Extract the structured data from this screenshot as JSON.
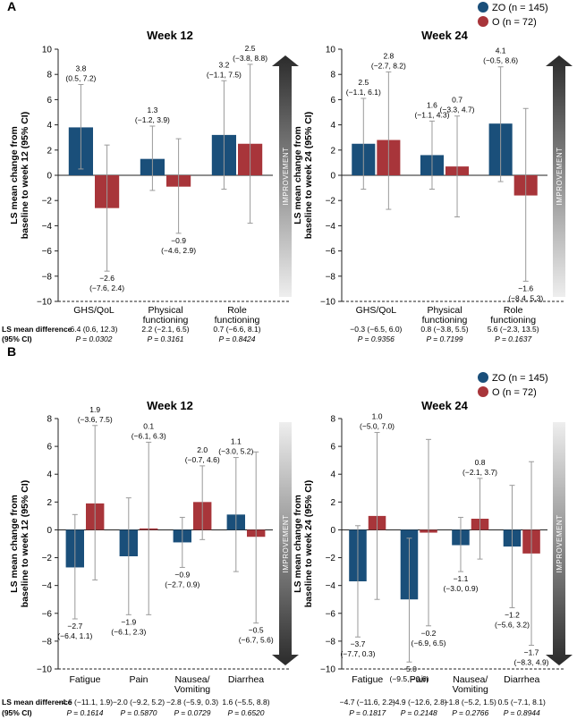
{
  "colors": {
    "zo": "#1a4f7a",
    "o": "#a8353a",
    "ci": "#9a9a9a",
    "axis": "#222222",
    "arrow_dark": "#2b2b2b",
    "arrow_light": "#eeeeee"
  },
  "common": {
    "improvement": "IMPROVEMENT",
    "diff_label_1": "LS mean difference",
    "diff_label_2": "(95% CI)"
  },
  "panels": [
    {
      "letter": "A",
      "legend": [
        {
          "label": "ZO (n = 145)",
          "color": "#1a4f7a"
        },
        {
          "label": "O (n = 72)",
          "color": "#a8353a"
        }
      ],
      "arrow_dir": "up",
      "charts": [
        {
          "title": "Week 12",
          "ylabel1": "LS mean change from",
          "ylabel2": "baseline to week 12 (95% CI)",
          "ylim": [
            -10,
            10
          ],
          "yticks": [
            -10,
            -8,
            -6,
            -4,
            -2,
            0,
            2,
            4,
            6,
            8,
            10
          ],
          "categories": [
            {
              "label": [
                "GHS/QoL"
              ],
              "zo": {
                "value": 3.8,
                "lo": 0.5,
                "hi": 7.2,
                "text1": "3.8",
                "text2": "(0.5, 7.2)"
              },
              "o": {
                "value": -2.6,
                "lo": -7.6,
                "hi": 2.4,
                "text1": "−2.6",
                "text2": "(−7.6, 2.4)"
              },
              "diff": "6.4 (0.6, 12.3)",
              "p": "P = 0.0302"
            },
            {
              "label": [
                "Physical",
                "functioning"
              ],
              "zo": {
                "value": 1.3,
                "lo": -1.2,
                "hi": 3.9,
                "text1": "1.3",
                "text2": "(−1.2, 3.9)"
              },
              "o": {
                "value": -0.9,
                "lo": -4.6,
                "hi": 2.9,
                "text1": "−0.9",
                "text2": "(−4.6, 2.9)"
              },
              "diff": "2.2 (−2.1, 6.5)",
              "p": "P = 0.3161"
            },
            {
              "label": [
                "Role",
                "functioning"
              ],
              "zo": {
                "value": 3.2,
                "lo": -1.1,
                "hi": 7.5,
                "text1": "3.2",
                "text2": "(−1.1, 7.5)"
              },
              "o": {
                "value": 2.5,
                "lo": -3.8,
                "hi": 8.8,
                "text1": "2.5",
                "text2": "(−3.8, 8.8)"
              },
              "diff": "0.7 (−6.6, 8.1)",
              "p": "P = 0.8424"
            }
          ]
        },
        {
          "title": "Week 24",
          "ylabel1": "LS mean change from",
          "ylabel2": "baseline to week 24 (95% CI)",
          "ylim": [
            -10,
            10
          ],
          "yticks": [
            -10,
            -8,
            -6,
            -4,
            -2,
            0,
            2,
            4,
            6,
            8,
            10
          ],
          "categories": [
            {
              "label": [
                "GHS/QoL"
              ],
              "zo": {
                "value": 2.5,
                "lo": -1.1,
                "hi": 6.1,
                "text1": "2.5",
                "text2": "(−1.1, 6.1)"
              },
              "o": {
                "value": 2.8,
                "lo": -2.7,
                "hi": 8.2,
                "text1": "2.8",
                "text2": "(−2.7, 8.2)"
              },
              "diff": "−0.3 (−6.5, 6.0)",
              "p": "P = 0.9356"
            },
            {
              "label": [
                "Physical",
                "functioning"
              ],
              "zo": {
                "value": 1.6,
                "lo": -1.1,
                "hi": 4.3,
                "text1": "1.6",
                "text2": "(−1.1, 4.3)"
              },
              "o": {
                "value": 0.7,
                "lo": -3.3,
                "hi": 4.7,
                "text1": "0.7",
                "text2": "(−3.3, 4.7)"
              },
              "diff": "0.8 (−3.8, 5.5)",
              "p": "P = 0.7199"
            },
            {
              "label": [
                "Role",
                "functioning"
              ],
              "zo": {
                "value": 4.1,
                "lo": -0.5,
                "hi": 8.6,
                "text1": "4.1",
                "text2": "(−0.5, 8.6)"
              },
              "o": {
                "value": -1.6,
                "lo": -8.4,
                "hi": 5.3,
                "text1": "−1.6",
                "text2": "(−8.4, 5.3)"
              },
              "diff": "5.6 (−2.3, 13.5)",
              "p": "P = 0.1637"
            }
          ]
        }
      ]
    },
    {
      "letter": "B",
      "legend": [
        {
          "label": "ZO (n = 145)",
          "color": "#1a4f7a"
        },
        {
          "label": "O (n = 72)",
          "color": "#a8353a"
        }
      ],
      "arrow_dir": "down",
      "charts": [
        {
          "title": "Week 12",
          "ylabel1": "LS mean change from",
          "ylabel2": "baseline to week 12 (95% CI)",
          "ylim": [
            -10,
            8
          ],
          "yticks": [
            -10,
            -8,
            -6,
            -4,
            -2,
            0,
            2,
            4,
            6,
            8
          ],
          "categories": [
            {
              "label": [
                "Fatigue"
              ],
              "zo": {
                "value": -2.7,
                "lo": -6.4,
                "hi": 1.1,
                "text1": "−2.7",
                "text2": "(−6.4, 1.1)"
              },
              "o": {
                "value": 1.9,
                "lo": -3.6,
                "hi": 7.5,
                "text1": "1.9",
                "text2": "(−3.6, 7.5)"
              },
              "diff": "−4.6 (−11.1, 1.9)",
              "p": "P = 0.1614"
            },
            {
              "label": [
                "Pain"
              ],
              "zo": {
                "value": -1.9,
                "lo": -6.1,
                "hi": 2.3,
                "text1": "−1.9",
                "text2": "(−6.1, 2.3)"
              },
              "o": {
                "value": 0.1,
                "lo": -6.1,
                "hi": 6.3,
                "text1": "0.1",
                "text2": "(−6.1, 6.3)"
              },
              "diff": "−2.0 (−9.2, 5.2)",
              "p": "P = 0.5870"
            },
            {
              "label": [
                "Nausea/",
                "Vomiting"
              ],
              "zo": {
                "value": -0.9,
                "lo": -2.7,
                "hi": 0.9,
                "text1": "−0.9",
                "text2": "(−2.7, 0.9)"
              },
              "o": {
                "value": 2.0,
                "lo": -0.7,
                "hi": 4.6,
                "text1": "2.0",
                "text2": "(−0.7, 4.6)"
              },
              "diff": "−2.8 (−5.9, 0.3)",
              "p": "P = 0.0729"
            },
            {
              "label": [
                "Diarrhea"
              ],
              "zo": {
                "value": 1.1,
                "lo": -3.0,
                "hi": 5.2,
                "text1": "1.1",
                "text2": "(−3.0, 5.2)"
              },
              "o": {
                "value": -0.5,
                "lo": -6.7,
                "hi": 5.6,
                "text1": "−0.5",
                "text2": "(−6.7, 5.6)"
              },
              "diff": "1.6 (−5.5, 8.8)",
              "p": "P = 0.6520"
            }
          ]
        },
        {
          "title": "Week 24",
          "ylabel1": "LS mean change from",
          "ylabel2": "baseline to week 24 (95% CI)",
          "ylim": [
            -10,
            8
          ],
          "yticks": [
            -10,
            -8,
            -6,
            -4,
            -2,
            0,
            2,
            4,
            6,
            8
          ],
          "categories": [
            {
              "label": [
                "Fatigue"
              ],
              "zo": {
                "value": -3.7,
                "lo": -7.7,
                "hi": 0.3,
                "text1": "−3.7",
                "text2": "(−7.7, 0.3)"
              },
              "o": {
                "value": 1.0,
                "lo": -5.0,
                "hi": 7.0,
                "text1": "1.0",
                "text2": "(−5.0, 7.0)"
              },
              "diff": "−4.7 (−11.6, 2.2)",
              "p": "P = 0.1817"
            },
            {
              "label": [
                "Pain"
              ],
              "zo": {
                "value": -5.0,
                "lo": -9.5,
                "hi": -0.6,
                "text1": "−5.0",
                "text2": "(−9.5, −0.6)"
              },
              "o": {
                "value": -0.2,
                "lo": -6.9,
                "hi": 6.5,
                "text1": "−0.2",
                "text2": "(−6.9, 6.5)"
              },
              "diff": "−4.9 (−12.6, 2.8)",
              "p": "P = 0.2148"
            },
            {
              "label": [
                "Nausea/",
                "Vomiting"
              ],
              "zo": {
                "value": -1.1,
                "lo": -3.0,
                "hi": 0.9,
                "text1": "−1.1",
                "text2": "(−3.0, 0.9)"
              },
              "o": {
                "value": 0.8,
                "lo": -2.1,
                "hi": 3.7,
                "text1": "0.8",
                "text2": "(−2.1, 3.7)"
              },
              "diff": "−1.8 (−5.2, 1.5)",
              "p": "P = 0.2766"
            },
            {
              "label": [
                "Diarrhea"
              ],
              "zo": {
                "value": -1.2,
                "lo": -5.6,
                "hi": 3.2,
                "text1": "−1.2",
                "text2": "(−5.6, 3.2)"
              },
              "o": {
                "value": -1.7,
                "lo": -8.3,
                "hi": 4.9,
                "text1": "−1.7",
                "text2": "(−8.3, 4.9)"
              },
              "diff": "0.5 (−7.1, 8.1)",
              "p": "P = 0.8944"
            }
          ]
        }
      ]
    }
  ],
  "chart_data": [
    {
      "type": "bar",
      "title": "Week 12",
      "panel": "A",
      "ylabel": "LS mean change from baseline to week 12 (95% CI)",
      "categories": [
        "GHS/QoL",
        "Physical functioning",
        "Role functioning"
      ],
      "ylim": [
        -10,
        10
      ],
      "series": [
        {
          "name": "ZO (n = 145)",
          "values": [
            3.8,
            1.3,
            3.2
          ],
          "ci_low": [
            0.5,
            -1.2,
            -1.1
          ],
          "ci_high": [
            7.2,
            3.9,
            7.5
          ]
        },
        {
          "name": "O (n = 72)",
          "values": [
            -2.6,
            -0.9,
            2.5
          ],
          "ci_low": [
            -7.6,
            -4.6,
            -3.8
          ],
          "ci_high": [
            2.4,
            2.9,
            8.8
          ]
        }
      ]
    },
    {
      "type": "bar",
      "title": "Week 24",
      "panel": "A",
      "ylabel": "LS mean change from baseline to week 24 (95% CI)",
      "categories": [
        "GHS/QoL",
        "Physical functioning",
        "Role functioning"
      ],
      "ylim": [
        -10,
        10
      ],
      "series": [
        {
          "name": "ZO (n = 145)",
          "values": [
            2.5,
            1.6,
            4.1
          ],
          "ci_low": [
            -1.1,
            -1.1,
            -0.5
          ],
          "ci_high": [
            6.1,
            4.3,
            8.6
          ]
        },
        {
          "name": "O (n = 72)",
          "values": [
            2.8,
            0.7,
            -1.6
          ],
          "ci_low": [
            -2.7,
            -3.3,
            -8.4
          ],
          "ci_high": [
            8.2,
            4.7,
            5.3
          ]
        }
      ]
    },
    {
      "type": "bar",
      "title": "Week 12",
      "panel": "B",
      "ylabel": "LS mean change from baseline to week 12 (95% CI)",
      "categories": [
        "Fatigue",
        "Pain",
        "Nausea/Vomiting",
        "Diarrhea"
      ],
      "ylim": [
        -10,
        8
      ],
      "series": [
        {
          "name": "ZO (n = 145)",
          "values": [
            -2.7,
            -1.9,
            -0.9,
            1.1
          ],
          "ci_low": [
            -6.4,
            -6.1,
            -2.7,
            -3.0
          ],
          "ci_high": [
            1.1,
            2.3,
            0.9,
            5.2
          ]
        },
        {
          "name": "O (n = 72)",
          "values": [
            1.9,
            0.1,
            2.0,
            -0.5
          ],
          "ci_low": [
            -3.6,
            -6.1,
            -0.7,
            -6.7
          ],
          "ci_high": [
            7.5,
            6.3,
            4.6,
            5.6
          ]
        }
      ]
    },
    {
      "type": "bar",
      "title": "Week 24",
      "panel": "B",
      "ylabel": "LS mean change from baseline to week 24 (95% CI)",
      "categories": [
        "Fatigue",
        "Pain",
        "Nausea/Vomiting",
        "Diarrhea"
      ],
      "ylim": [
        -10,
        8
      ],
      "series": [
        {
          "name": "ZO (n = 145)",
          "values": [
            -3.7,
            -5.0,
            -1.1,
            -1.2
          ],
          "ci_low": [
            -7.7,
            -9.5,
            -3.0,
            -5.6
          ],
          "ci_high": [
            0.3,
            -0.6,
            0.9,
            3.2
          ]
        },
        {
          "name": "O (n = 72)",
          "values": [
            1.0,
            -0.2,
            0.8,
            -1.7
          ],
          "ci_low": [
            -5.0,
            -6.9,
            -2.1,
            -8.3
          ],
          "ci_high": [
            7.0,
            6.5,
            3.7,
            4.9
          ]
        }
      ]
    }
  ]
}
